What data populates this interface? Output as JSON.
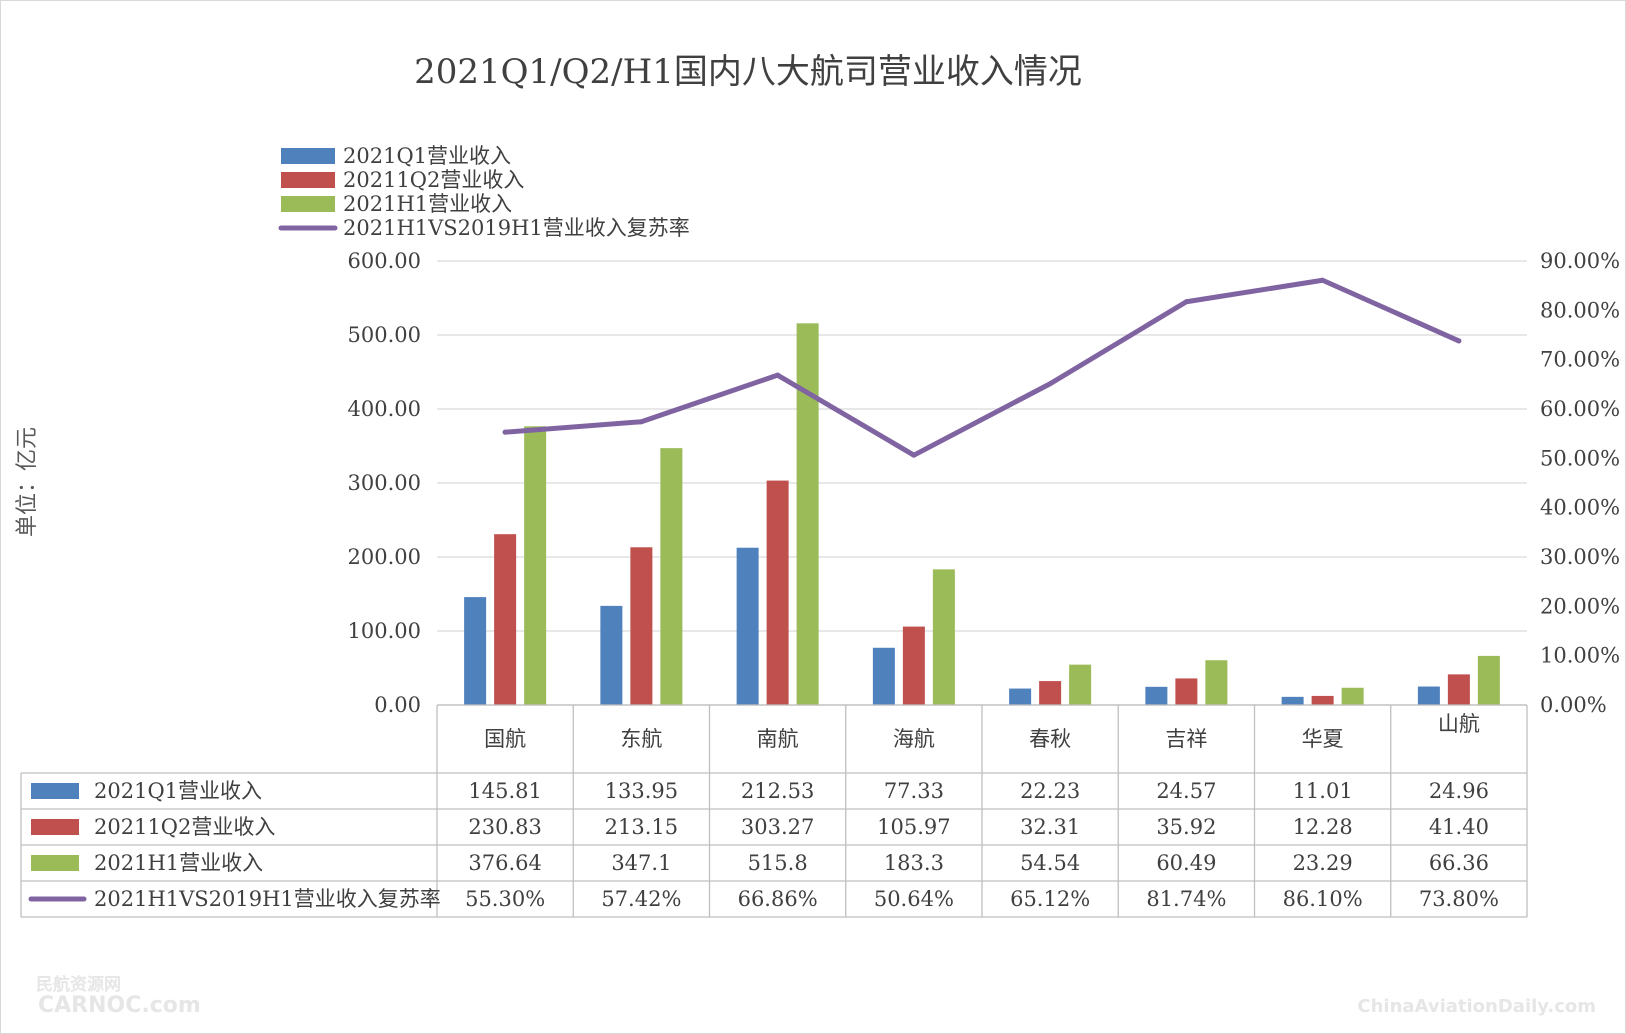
{
  "chart_data": {
    "type": "bar",
    "title": "2021Q1/Q2/H1国内八大航司营业收入情况",
    "ylabel": "单位：亿元",
    "categories": [
      "国航",
      "东航",
      "南航",
      "海航",
      "春秋",
      "吉祥",
      "华夏",
      "山航"
    ],
    "ylim": [
      0,
      600
    ],
    "y_ticks": [
      "0.00",
      "100.00",
      "200.00",
      "300.00",
      "400.00",
      "500.00",
      "600.00"
    ],
    "y2lim": [
      0,
      90
    ],
    "y2_ticks": [
      "0.00%",
      "10.00%",
      "20.00%",
      "30.00%",
      "40.00%",
      "50.00%",
      "60.00%",
      "70.00%",
      "80.00%",
      "90.00%"
    ],
    "grid": true,
    "legend_position": "top-left",
    "series": [
      {
        "name": "2021Q1营业收入",
        "kind": "bar",
        "color": "#4f81bd",
        "values": [
          145.81,
          133.95,
          212.53,
          77.33,
          22.23,
          24.57,
          11.01,
          24.96
        ],
        "labels": [
          "145.81",
          "133.95",
          "212.53",
          "77.33",
          "22.23",
          "24.57",
          "11.01",
          "24.96"
        ]
      },
      {
        "name": "20211Q2营业收入",
        "kind": "bar",
        "color": "#c0504d",
        "values": [
          230.83,
          213.15,
          303.27,
          105.97,
          32.31,
          35.92,
          12.28,
          41.4
        ],
        "labels": [
          "230.83",
          "213.15",
          "303.27",
          "105.97",
          "32.31",
          "35.92",
          "12.28",
          "41.40"
        ]
      },
      {
        "name": "2021H1营业收入",
        "kind": "bar",
        "color": "#9bbb59",
        "values": [
          376.64,
          347.1,
          515.8,
          183.3,
          54.54,
          60.49,
          23.29,
          66.36
        ],
        "labels": [
          "376.64",
          "347.1",
          "515.8",
          "183.3",
          "54.54",
          "60.49",
          "23.29",
          "66.36"
        ]
      },
      {
        "name": "2021H1VS2019H1营业收入复苏率",
        "kind": "line",
        "axis": "secondary",
        "color": "#8064a2",
        "values": [
          55.3,
          57.42,
          66.86,
          50.64,
          65.12,
          81.74,
          86.1,
          73.8
        ],
        "labels": [
          "55.30%",
          "57.42%",
          "66.86%",
          "50.64%",
          "65.12%",
          "81.74%",
          "86.10%",
          "73.80%"
        ]
      }
    ]
  },
  "watermarks": {
    "left_top": "民航资源网",
    "left_bottom": "CARNOC.com",
    "right": "ChinaAviationDaily.com"
  }
}
